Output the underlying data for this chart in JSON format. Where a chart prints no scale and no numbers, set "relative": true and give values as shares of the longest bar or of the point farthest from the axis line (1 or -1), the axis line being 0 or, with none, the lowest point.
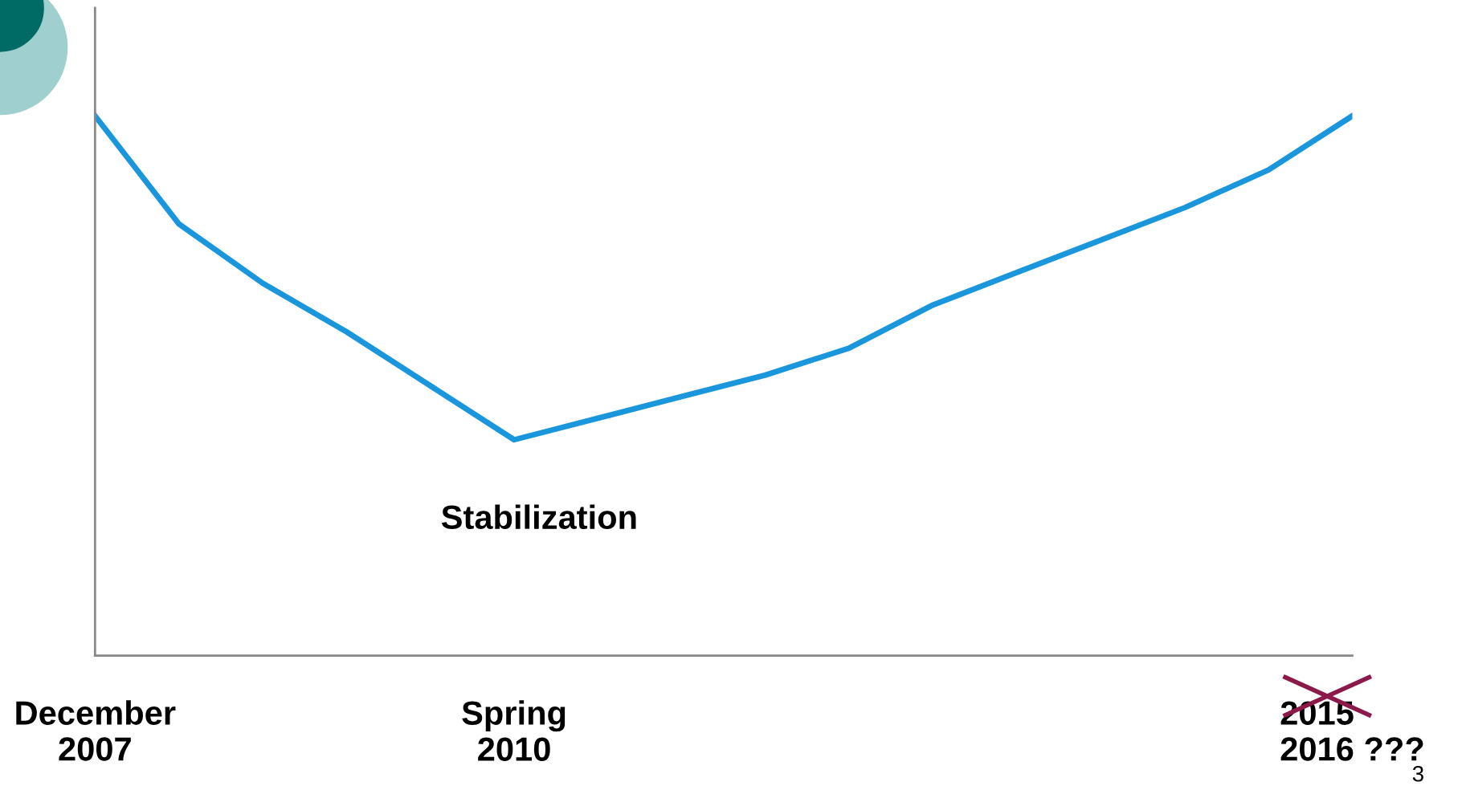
{
  "chart_data": {
    "type": "line",
    "relative": true,
    "categories": [
      "December\n2007",
      null,
      null,
      null,
      null,
      "Spring\n2010",
      null,
      null,
      null,
      null,
      null,
      null,
      null,
      null,
      null,
      "2015\n2016 ???"
    ],
    "series": [
      {
        "color": "#1a96dd",
        "values": [
          1,
          0.8,
          0.69,
          0.6,
          0.5,
          0.4,
          0.44,
          0.48,
          0.52,
          0.57,
          0.65,
          0.71,
          0.77,
          0.83,
          0.9,
          1
        ]
      }
    ],
    "annotations": [
      "Stabilization",
      "3"
    ],
    "grid": false,
    "legend": false,
    "marker": "none",
    "line_style": "solid"
  }
}
